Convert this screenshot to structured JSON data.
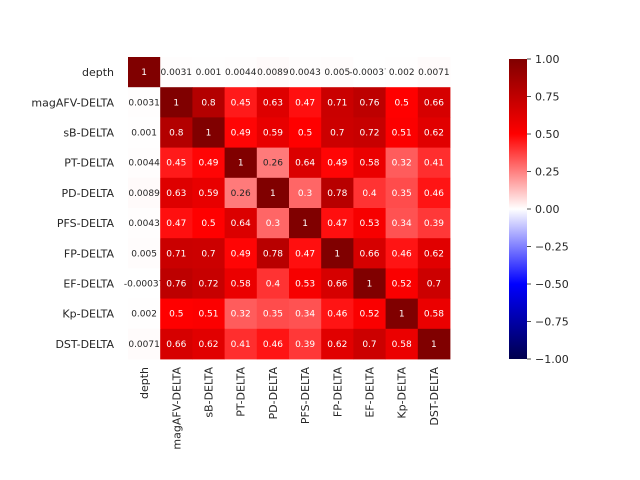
{
  "chart_data": {
    "type": "heatmap",
    "title": "",
    "xlabel": "",
    "ylabel": "",
    "labels": [
      "depth",
      "magAFV-DELTA",
      "sB-DELTA",
      "PT-DELTA",
      "PD-DELTA",
      "PFS-DELTA",
      "FP-DELTA",
      "EF-DELTA",
      "Kp-DELTA",
      "DST-DELTA"
    ],
    "matrix": [
      [
        1,
        0.0031,
        0.001,
        0.0044,
        0.0089,
        0.0043,
        0.005,
        -0.00037,
        0.002,
        0.0071
      ],
      [
        0.0031,
        1,
        0.8,
        0.45,
        0.63,
        0.47,
        0.71,
        0.76,
        0.5,
        0.66
      ],
      [
        0.001,
        0.8,
        1,
        0.49,
        0.59,
        0.5,
        0.7,
        0.72,
        0.51,
        0.62
      ],
      [
        0.0044,
        0.45,
        0.49,
        1,
        0.26,
        0.64,
        0.49,
        0.58,
        0.32,
        0.41
      ],
      [
        0.0089,
        0.63,
        0.59,
        0.26,
        1,
        0.3,
        0.78,
        0.4,
        0.35,
        0.46
      ],
      [
        0.0043,
        0.47,
        0.5,
        0.64,
        0.3,
        1,
        0.47,
        0.53,
        0.34,
        0.39
      ],
      [
        0.005,
        0.71,
        0.7,
        0.49,
        0.78,
        0.47,
        1,
        0.66,
        0.46,
        0.62
      ],
      [
        -0.00037,
        0.76,
        0.72,
        0.58,
        0.4,
        0.53,
        0.66,
        1,
        0.52,
        0.7
      ],
      [
        0.002,
        0.5,
        0.51,
        0.32,
        0.35,
        0.34,
        0.46,
        0.52,
        1,
        0.58
      ],
      [
        0.0071,
        0.66,
        0.62,
        0.41,
        0.46,
        0.39,
        0.62,
        0.7,
        0.58,
        1
      ]
    ],
    "cell_text": [
      [
        "1",
        "0.0031",
        "0.001",
        "0.0044",
        "0.0089",
        "0.0043",
        "0.005",
        "-0.00037",
        "0.002",
        "0.0071"
      ],
      [
        "0.0031",
        "1",
        "0.8",
        "0.45",
        "0.63",
        "0.47",
        "0.71",
        "0.76",
        "0.5",
        "0.66"
      ],
      [
        "0.001",
        "0.8",
        "1",
        "0.49",
        "0.59",
        "0.5",
        "0.7",
        "0.72",
        "0.51",
        "0.62"
      ],
      [
        "0.0044",
        "0.45",
        "0.49",
        "1",
        "0.26",
        "0.64",
        "0.49",
        "0.58",
        "0.32",
        "0.41"
      ],
      [
        "0.0089",
        "0.63",
        "0.59",
        "0.26",
        "1",
        "0.3",
        "0.78",
        "0.4",
        "0.35",
        "0.46"
      ],
      [
        "0.0043",
        "0.47",
        "0.5",
        "0.64",
        "0.3",
        "1",
        "0.47",
        "0.53",
        "0.34",
        "0.39"
      ],
      [
        "0.005",
        "0.71",
        "0.7",
        "0.49",
        "0.78",
        "0.47",
        "1",
        "0.66",
        "0.46",
        "0.62"
      ],
      [
        "-0.00037",
        "0.76",
        "0.72",
        "0.58",
        "0.4",
        "0.53",
        "0.66",
        "1",
        "0.52",
        "0.7"
      ],
      [
        "0.002",
        "0.5",
        "0.51",
        "0.32",
        "0.35",
        "0.34",
        "0.46",
        "0.52",
        "1",
        "0.58"
      ],
      [
        "0.0071",
        "0.66",
        "0.62",
        "0.41",
        "0.46",
        "0.39",
        "0.62",
        "0.7",
        "0.58",
        "1"
      ]
    ],
    "colorbar": {
      "range": [
        -1,
        1
      ],
      "colormap": "seismic",
      "ticks": [
        1.0,
        0.75,
        0.5,
        0.25,
        0.0,
        -0.25,
        -0.5,
        -0.75,
        -1.0
      ],
      "tick_labels": [
        "1.00",
        "0.75",
        "0.50",
        "0.25",
        "0.00",
        "−0.25",
        "−0.50",
        "−0.75",
        "−1.00"
      ]
    },
    "grid": false,
    "colors": {
      "neg_end": "#00004d",
      "blue": "#0000ff",
      "white": "#ffffff",
      "red": "#ff0000",
      "pos_end": "#800000"
    }
  }
}
